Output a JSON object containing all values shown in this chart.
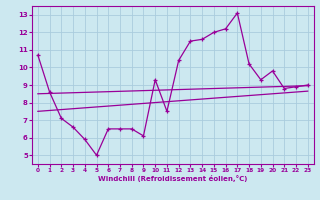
{
  "x": [
    0,
    1,
    2,
    3,
    4,
    5,
    6,
    7,
    8,
    9,
    10,
    11,
    12,
    13,
    14,
    15,
    16,
    17,
    18,
    19,
    20,
    21,
    22,
    23
  ],
  "y_main": [
    10.7,
    8.6,
    7.1,
    6.6,
    5.9,
    5.0,
    6.5,
    6.5,
    6.5,
    6.1,
    9.3,
    7.5,
    10.4,
    11.5,
    11.6,
    12.0,
    12.2,
    13.1,
    10.2,
    9.3,
    9.8,
    8.8,
    8.9,
    9.0
  ],
  "y_line1": [
    8.5,
    8.52,
    8.54,
    8.56,
    8.58,
    8.6,
    8.62,
    8.64,
    8.66,
    8.68,
    8.7,
    8.72,
    8.74,
    8.76,
    8.78,
    8.8,
    8.82,
    8.84,
    8.86,
    8.88,
    8.9,
    8.92,
    8.94,
    8.96
  ],
  "y_line2": [
    7.5,
    7.55,
    7.6,
    7.65,
    7.7,
    7.75,
    7.8,
    7.85,
    7.9,
    7.95,
    8.0,
    8.05,
    8.1,
    8.15,
    8.2,
    8.25,
    8.3,
    8.35,
    8.4,
    8.45,
    8.5,
    8.55,
    8.6,
    8.65
  ],
  "color": "#990099",
  "bg_color": "#cce8f0",
  "grid_color": "#aaccdd",
  "xlabel": "Windchill (Refroidissement éolien,°C)",
  "xlim": [
    -0.5,
    23.5
  ],
  "ylim": [
    4.5,
    13.5
  ],
  "yticks": [
    5,
    6,
    7,
    8,
    9,
    10,
    11,
    12,
    13
  ],
  "xticks": [
    0,
    1,
    2,
    3,
    4,
    5,
    6,
    7,
    8,
    9,
    10,
    11,
    12,
    13,
    14,
    15,
    16,
    17,
    18,
    19,
    20,
    21,
    22,
    23
  ]
}
